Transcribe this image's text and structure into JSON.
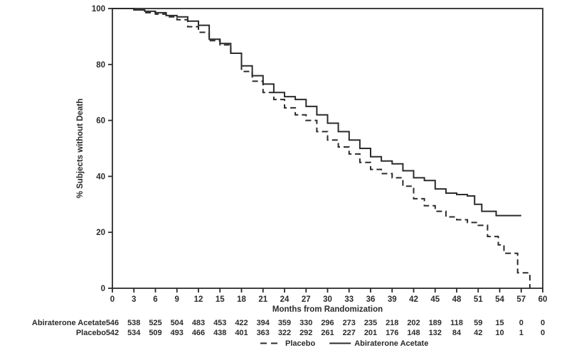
{
  "figure": {
    "background": "#ffffff",
    "line_color": "#2b2b2b"
  },
  "chart_data": {
    "type": "line",
    "subtype": "kaplan-meier-step",
    "title": "",
    "xlabel": "Months from Randomization",
    "ylabel": "% Subjects without Death",
    "xlim": [
      0,
      60
    ],
    "ylim": [
      0,
      100
    ],
    "xticks": [
      0,
      3,
      6,
      9,
      12,
      15,
      18,
      21,
      24,
      27,
      30,
      33,
      36,
      39,
      42,
      45,
      48,
      51,
      54,
      57,
      60
    ],
    "yticks": [
      0,
      20,
      40,
      60,
      80,
      100
    ],
    "grid": false,
    "frame": "box",
    "legend_position": "bottom-center",
    "series": [
      {
        "name": "Abiraterone Acetate",
        "style": "solid",
        "points": [
          [
            0,
            100
          ],
          [
            2.5,
            100
          ],
          [
            3,
            99.5
          ],
          [
            4.5,
            99
          ],
          [
            6,
            98.5
          ],
          [
            7.5,
            97.5
          ],
          [
            9,
            97
          ],
          [
            10.5,
            95.5
          ],
          [
            12,
            94
          ],
          [
            13.5,
            89
          ],
          [
            15,
            87.5
          ],
          [
            16.5,
            84
          ],
          [
            18,
            79.5
          ],
          [
            19.5,
            76
          ],
          [
            21,
            73
          ],
          [
            22.5,
            70
          ],
          [
            24,
            68.5
          ],
          [
            25.5,
            67.5
          ],
          [
            27,
            65
          ],
          [
            28.5,
            62
          ],
          [
            30,
            59
          ],
          [
            31.5,
            56
          ],
          [
            33,
            53
          ],
          [
            34.5,
            50
          ],
          [
            36,
            47
          ],
          [
            37.5,
            45.5
          ],
          [
            39,
            44.5
          ],
          [
            40.5,
            42
          ],
          [
            42,
            39.5
          ],
          [
            43.5,
            38.5
          ],
          [
            45,
            35.5
          ],
          [
            46.5,
            34
          ],
          [
            48,
            33.5
          ],
          [
            49.5,
            33
          ],
          [
            50.5,
            30
          ],
          [
            51.5,
            27.5
          ],
          [
            53.5,
            26
          ],
          [
            57,
            26
          ]
        ]
      },
      {
        "name": "Placebo",
        "style": "dashed",
        "points": [
          [
            0,
            100
          ],
          [
            2.5,
            100
          ],
          [
            3,
            99.5
          ],
          [
            4.5,
            98.5
          ],
          [
            6,
            98
          ],
          [
            7.5,
            97
          ],
          [
            9,
            96
          ],
          [
            10.5,
            93.5
          ],
          [
            12,
            91.5
          ],
          [
            13.5,
            88.5
          ],
          [
            15,
            87
          ],
          [
            16.5,
            84
          ],
          [
            18,
            77.5
          ],
          [
            19.5,
            74
          ],
          [
            21,
            70
          ],
          [
            22.5,
            67.5
          ],
          [
            24,
            64.5
          ],
          [
            25.5,
            62
          ],
          [
            27,
            60
          ],
          [
            28.5,
            56
          ],
          [
            30,
            53
          ],
          [
            31.5,
            50.5
          ],
          [
            33,
            48
          ],
          [
            34.5,
            45
          ],
          [
            36,
            42.5
          ],
          [
            37.5,
            41
          ],
          [
            39,
            39.5
          ],
          [
            40.5,
            36.5
          ],
          [
            42,
            32
          ],
          [
            43.5,
            29.5
          ],
          [
            45,
            27.5
          ],
          [
            46.5,
            25.5
          ],
          [
            48,
            24.5
          ],
          [
            49.5,
            23.5
          ],
          [
            51,
            22.5
          ],
          [
            52.3,
            18.5
          ],
          [
            53.8,
            15.5
          ],
          [
            54.6,
            12.5
          ],
          [
            56.5,
            5.5
          ],
          [
            58.2,
            5.5
          ],
          [
            58.2,
            0
          ]
        ]
      }
    ],
    "legend": {
      "entries": [
        {
          "label": "Placebo",
          "style": "dashed"
        },
        {
          "label": "Abiraterone Acetate",
          "style": "solid"
        }
      ]
    }
  },
  "at_risk_table": {
    "months": [
      0,
      3,
      6,
      9,
      12,
      15,
      18,
      21,
      24,
      27,
      30,
      33,
      36,
      39,
      42,
      45,
      48,
      51,
      54,
      57,
      60
    ],
    "rows": [
      {
        "label": "Abiraterone Acetate",
        "counts": [
          546,
          538,
          525,
          504,
          483,
          453,
          422,
          394,
          359,
          330,
          296,
          273,
          235,
          218,
          202,
          189,
          118,
          59,
          15,
          0,
          0
        ]
      },
      {
        "label": "Placebo",
        "counts": [
          542,
          534,
          509,
          493,
          466,
          438,
          401,
          363,
          322,
          292,
          261,
          227,
          201,
          176,
          148,
          132,
          84,
          42,
          10,
          1,
          0
        ]
      }
    ]
  }
}
